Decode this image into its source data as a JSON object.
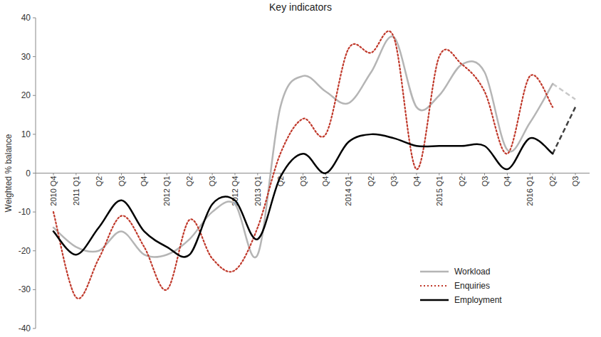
{
  "chart_data": {
    "type": "line",
    "title": "Key indicators",
    "y_label": "Weighted % balance",
    "categories": [
      "2010 Q4",
      "2011 Q1",
      "Q2",
      "Q3",
      "Q4",
      "2012 Q1",
      "Q2",
      "Q3",
      "2012 Q4",
      "2013 Q1",
      "Q2",
      "Q3",
      "Q4",
      "2014 Q1",
      "Q2",
      "Q3",
      "Q4",
      "2015 Q1",
      "Q2",
      "Q3",
      "Q4",
      "2016 Q1",
      "Q2",
      "Q3"
    ],
    "series": [
      {
        "name": "Workload",
        "color": "#b5b5b5",
        "line_style": "solid",
        "values": [
          -14,
          -19,
          -20,
          -15,
          -21,
          -21,
          -17,
          -10,
          -8,
          -21,
          17,
          25,
          21,
          18,
          26,
          35,
          17,
          20,
          28,
          26,
          6,
          13,
          23,
          19
        ]
      },
      {
        "name": "Enquiries",
        "color": "#c0392b",
        "line_style": "dotted",
        "values": [
          -10,
          -32,
          -22,
          -11,
          -19,
          -30,
          -12,
          -22,
          -25,
          -14,
          5,
          14,
          10,
          32,
          31,
          35,
          1,
          30,
          28,
          21,
          5,
          25,
          17,
          null
        ]
      },
      {
        "name": "Employment",
        "color": "#000000",
        "line_style": "solid",
        "values": [
          -15,
          -21,
          -14,
          -7,
          -15,
          -19,
          -21,
          -8,
          -7,
          -17,
          -1,
          5,
          0,
          8,
          10,
          9,
          7,
          7,
          7,
          7,
          1,
          9,
          5,
          17
        ]
      }
    ],
    "ylim": [
      -40,
      40
    ],
    "yticks": [
      -40,
      -30,
      -20,
      -10,
      0,
      10,
      20,
      30,
      40
    ],
    "grid": false,
    "legend": "lower right"
  }
}
